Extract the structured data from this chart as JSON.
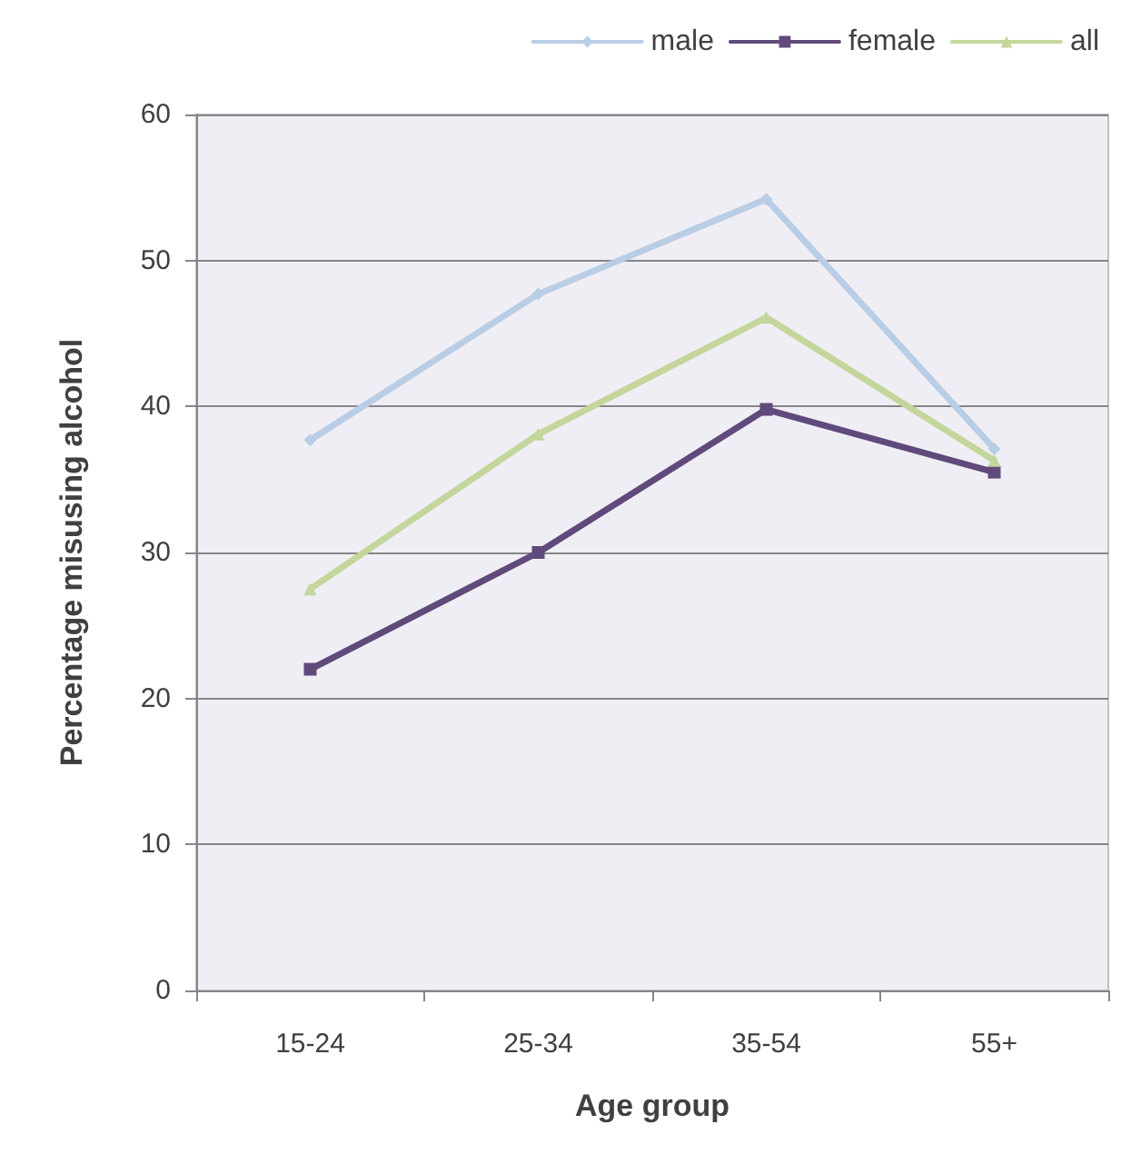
{
  "chart_data": {
    "type": "line",
    "xlabel": "Age group",
    "ylabel": "Percentage misusing alcohol",
    "categories": [
      "15-24",
      "25-34",
      "35-54",
      "55+"
    ],
    "series": [
      {
        "name": "male",
        "color": "#b9cde5",
        "marker": "diamond",
        "values": [
          37.7,
          47.7,
          54.2,
          37.1
        ]
      },
      {
        "name": "female",
        "color": "#604a7b",
        "marker": "square",
        "values": [
          22.0,
          30.0,
          39.8,
          35.5
        ]
      },
      {
        "name": "all",
        "color": "#c3d69b",
        "marker": "triangle",
        "values": [
          27.5,
          38.1,
          46.1,
          36.3
        ]
      }
    ],
    "ylim": [
      0,
      60
    ],
    "yticks": [
      0,
      10,
      20,
      30,
      40,
      50,
      60
    ],
    "grid": "y",
    "legend": "top right",
    "line_style": "solid"
  }
}
